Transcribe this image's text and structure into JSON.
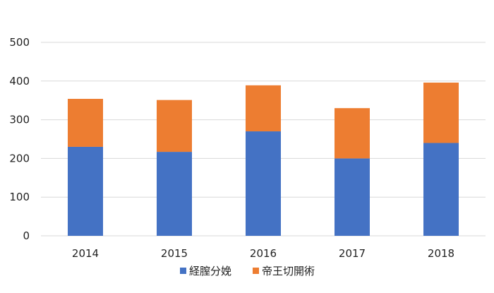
{
  "chart_data": {
    "type": "bar",
    "stacked": true,
    "title": "",
    "xlabel": "",
    "ylabel": "",
    "categories": [
      "2014",
      "2015",
      "2016",
      "2017",
      "2018"
    ],
    "series": [
      {
        "name": "経膣分娩",
        "color": "#4472c4",
        "values": [
          230,
          217,
          270,
          200,
          240
        ]
      },
      {
        "name": "帝王切開術",
        "color": "#ed7d31",
        "values": [
          124,
          134,
          119,
          130,
          156
        ]
      }
    ],
    "ylim": [
      0,
      500
    ],
    "yticks": [
      0,
      100,
      200,
      300,
      400,
      500
    ],
    "grid": true,
    "legend_position": "bottom"
  }
}
